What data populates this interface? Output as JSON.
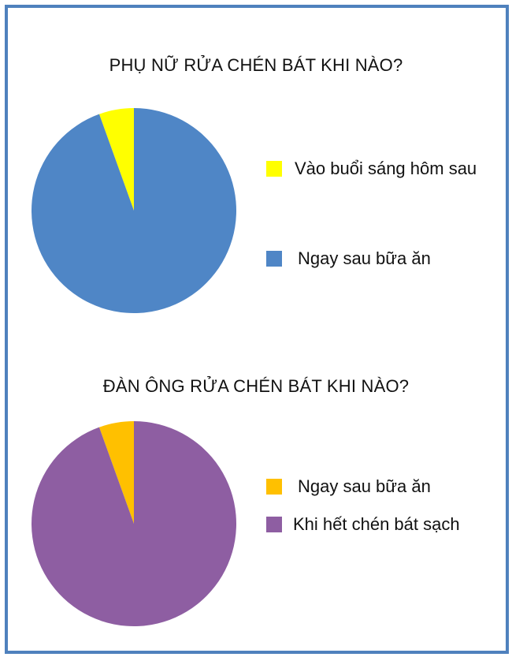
{
  "chart_data": [
    {
      "type": "pie",
      "title": "PHỤ NỮ RỬA CHÉN BÁT KHI NÀO?",
      "slices": [
        {
          "label": "Vào buổi sáng hôm sau",
          "value": 5.5,
          "color": "#ffff00"
        },
        {
          "label": "Ngay sau bữa ăn",
          "value": 94.5,
          "color": "#4f86c6"
        }
      ],
      "legend": "right"
    },
    {
      "type": "pie",
      "title": "ĐÀN ÔNG RỬA CHÉN BÁT KHI NÀO?",
      "slices": [
        {
          "label": "Ngay sau bữa ăn",
          "value": 5.5,
          "color": "#ffc000"
        },
        {
          "label": "Khi hết chén bát sạch",
          "value": 94.5,
          "color": "#8e5ea2"
        }
      ],
      "legend": "right"
    }
  ],
  "colors": {
    "frame": "#4f81bd"
  }
}
